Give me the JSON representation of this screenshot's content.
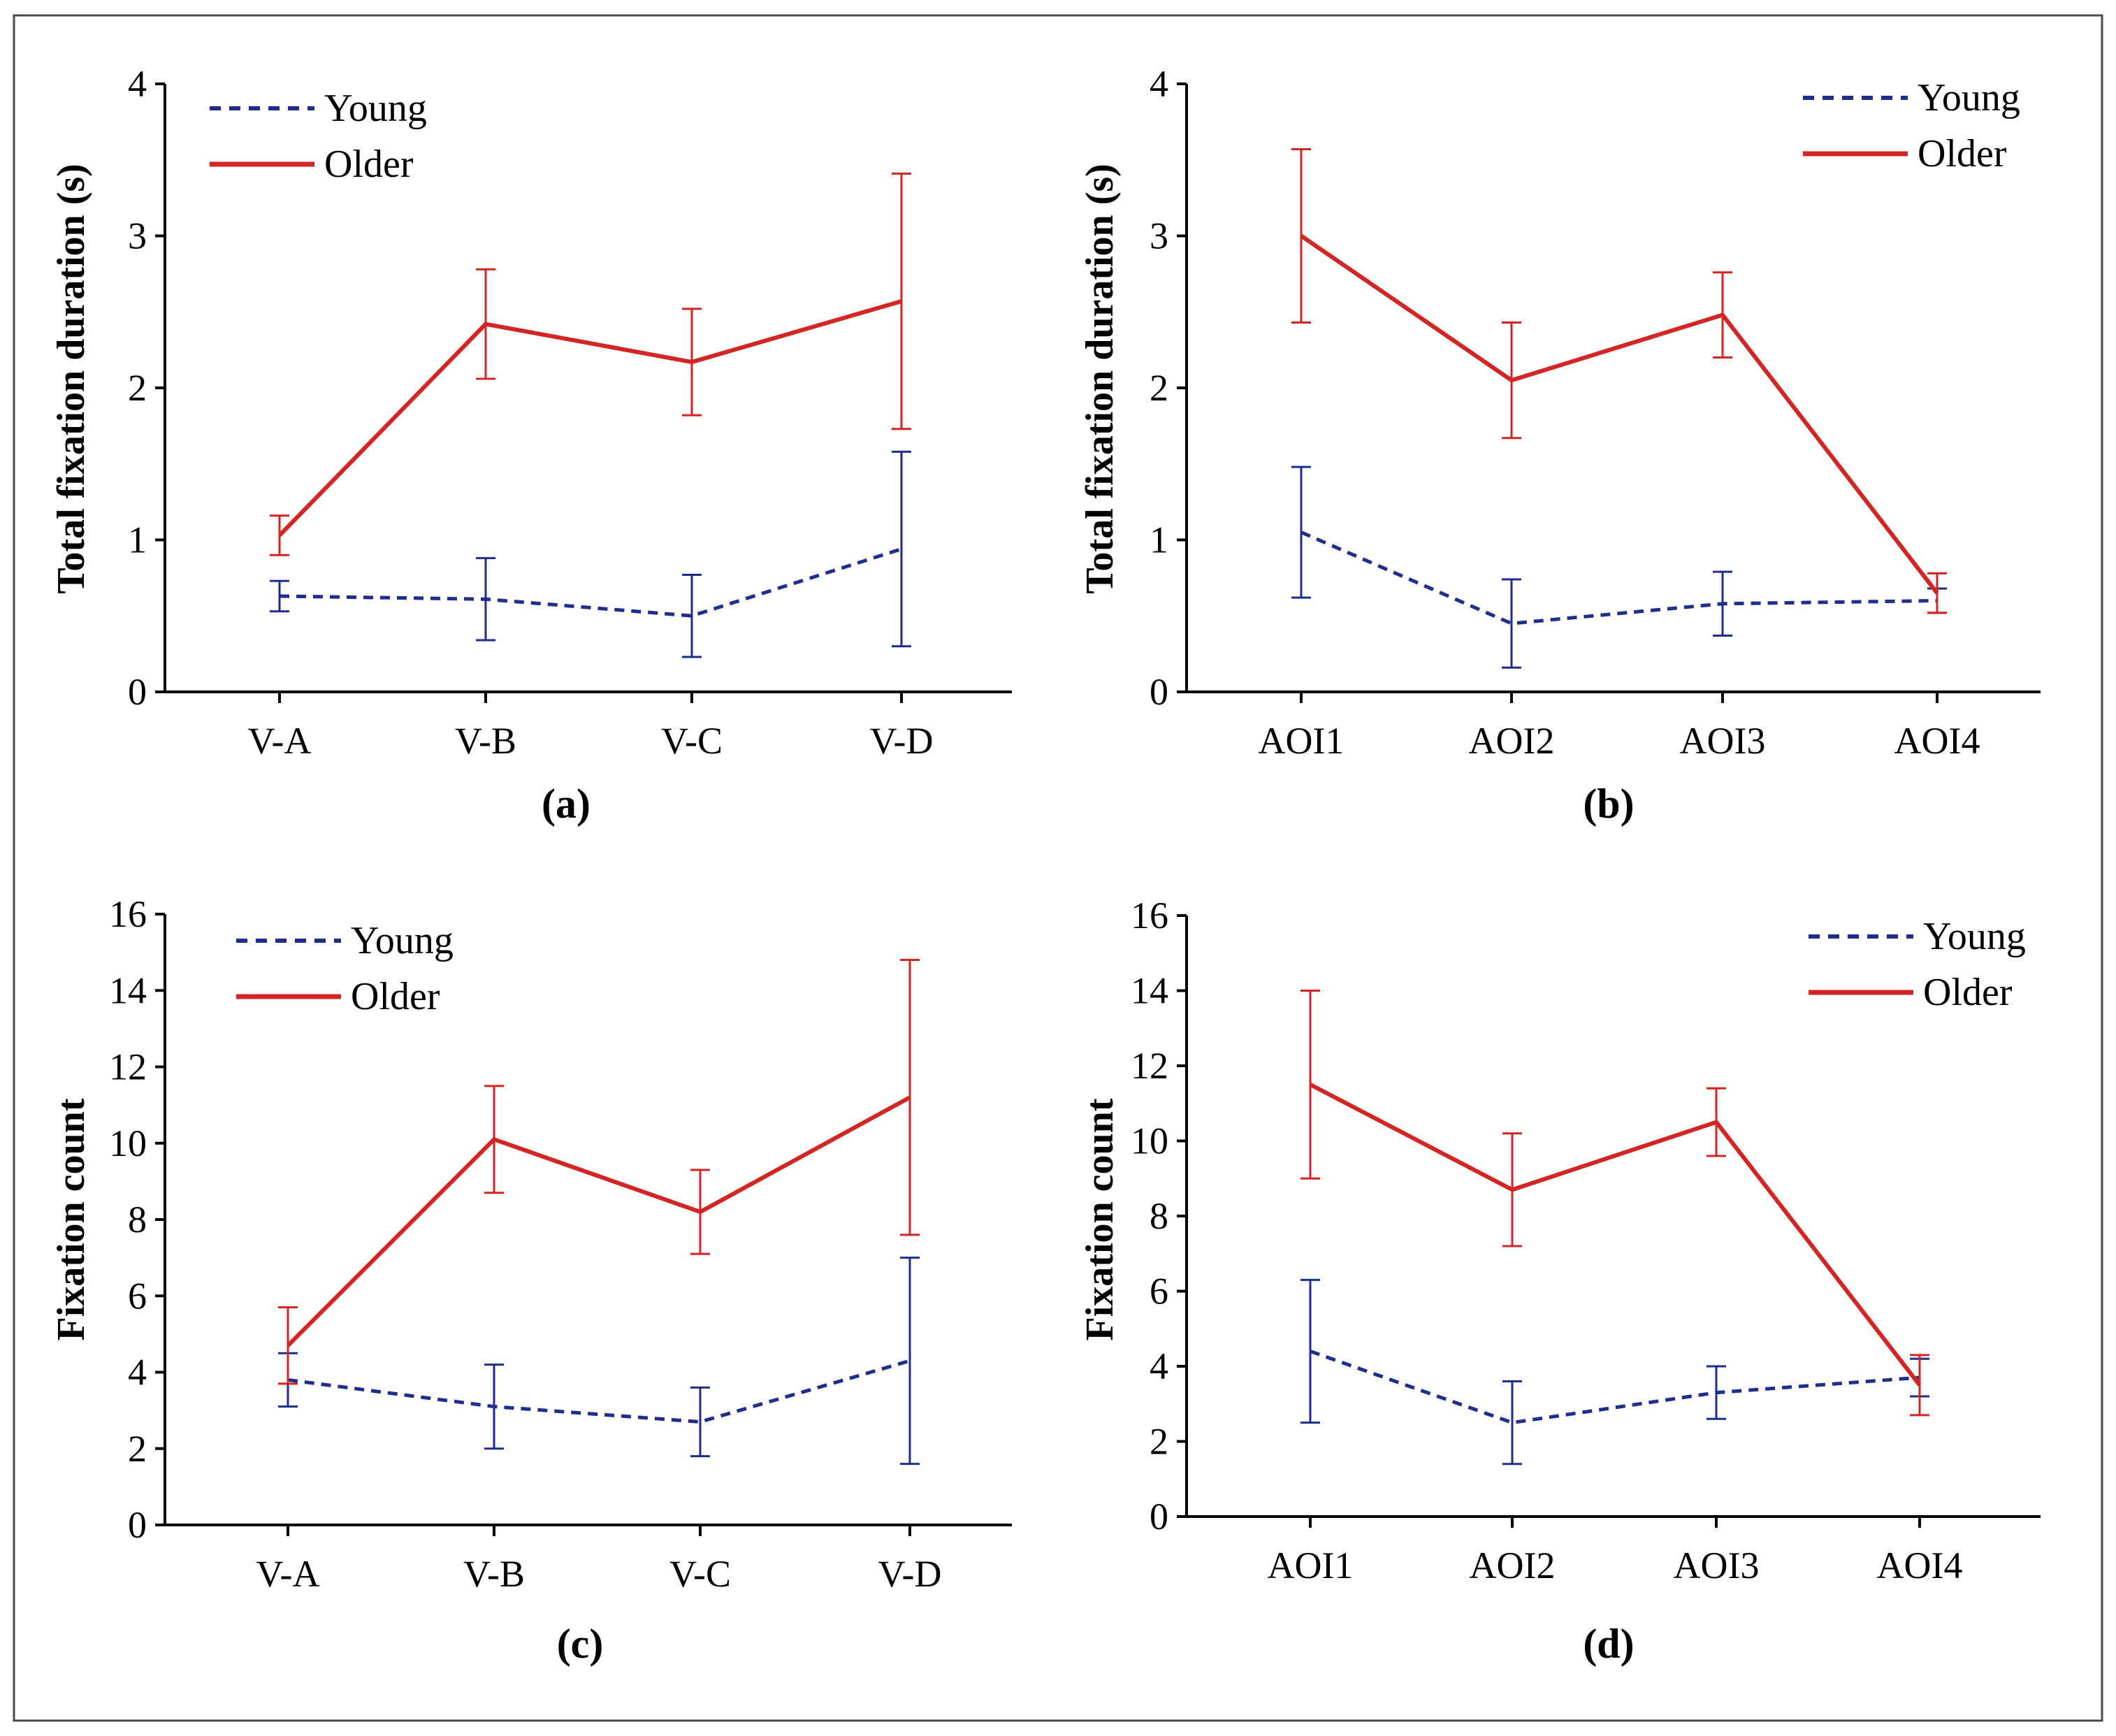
{
  "colors": {
    "young": "#1f2d8c",
    "older": "#d42525"
  },
  "chart_data": [
    {
      "panel": "(a)",
      "type": "line",
      "categories": [
        "V-A",
        "V-B",
        "V-C",
        "V-D"
      ],
      "xlabel": "",
      "ylabel": "Total fixation duration (s)",
      "ylim": [
        0,
        4
      ],
      "yticks": [
        0,
        1,
        2,
        3,
        4
      ],
      "legend_position": "top-left",
      "grid": false,
      "series": [
        {
          "name": "Young",
          "style": "dashed",
          "values": [
            0.63,
            0.61,
            0.5,
            0.94
          ],
          "error": [
            0.1,
            0.27,
            0.27,
            0.64
          ]
        },
        {
          "name": "Older",
          "style": "solid",
          "values": [
            1.03,
            2.42,
            2.17,
            2.57
          ],
          "error": [
            0.13,
            0.36,
            0.35,
            0.84
          ]
        }
      ]
    },
    {
      "panel": "(b)",
      "type": "line",
      "categories": [
        "AOI1",
        "AOI2",
        "AOI3",
        "AOI4"
      ],
      "xlabel": "",
      "ylabel": "Total fixation duration (s)",
      "ylim": [
        0,
        4
      ],
      "yticks": [
        0,
        1,
        2,
        3,
        4
      ],
      "legend_position": "top-right",
      "grid": false,
      "series": [
        {
          "name": "Young",
          "style": "dashed",
          "values": [
            1.05,
            0.45,
            0.58,
            0.6
          ],
          "error": [
            0.43,
            0.29,
            0.21,
            0.08
          ]
        },
        {
          "name": "Older",
          "style": "solid",
          "values": [
            3.0,
            2.05,
            2.48,
            0.65
          ],
          "error": [
            0.57,
            0.38,
            0.28,
            0.13
          ]
        }
      ]
    },
    {
      "panel": "(c)",
      "type": "line",
      "categories": [
        "V-A",
        "V-B",
        "V-C",
        "V-D"
      ],
      "xlabel": "",
      "ylabel": "Fixation count",
      "ylim": [
        0,
        16
      ],
      "yticks": [
        0,
        2,
        4,
        6,
        8,
        10,
        12,
        14,
        16
      ],
      "legend_position": "top-left",
      "grid": false,
      "series": [
        {
          "name": "Young",
          "style": "dashed",
          "values": [
            3.8,
            3.1,
            2.7,
            4.3
          ],
          "error": [
            0.7,
            1.1,
            0.9,
            2.7
          ]
        },
        {
          "name": "Older",
          "style": "solid",
          "values": [
            4.7,
            10.1,
            8.2,
            11.2
          ],
          "error": [
            1.0,
            1.4,
            1.1,
            3.6
          ]
        }
      ]
    },
    {
      "panel": "(d)",
      "type": "line",
      "categories": [
        "AOI1",
        "AOI2",
        "AOI3",
        "AOI4"
      ],
      "xlabel": "",
      "ylabel": "Fixation count",
      "ylim": [
        0,
        16
      ],
      "yticks": [
        0,
        2,
        4,
        6,
        8,
        10,
        12,
        14,
        16
      ],
      "legend_position": "top-right",
      "grid": false,
      "series": [
        {
          "name": "Young",
          "style": "dashed",
          "values": [
            4.4,
            2.5,
            3.3,
            3.7
          ],
          "error": [
            1.9,
            1.1,
            0.7,
            0.5
          ]
        },
        {
          "name": "Older",
          "style": "solid",
          "values": [
            11.5,
            8.7,
            10.5,
            3.5
          ],
          "error": [
            2.5,
            1.5,
            0.9,
            0.8
          ]
        }
      ]
    }
  ]
}
